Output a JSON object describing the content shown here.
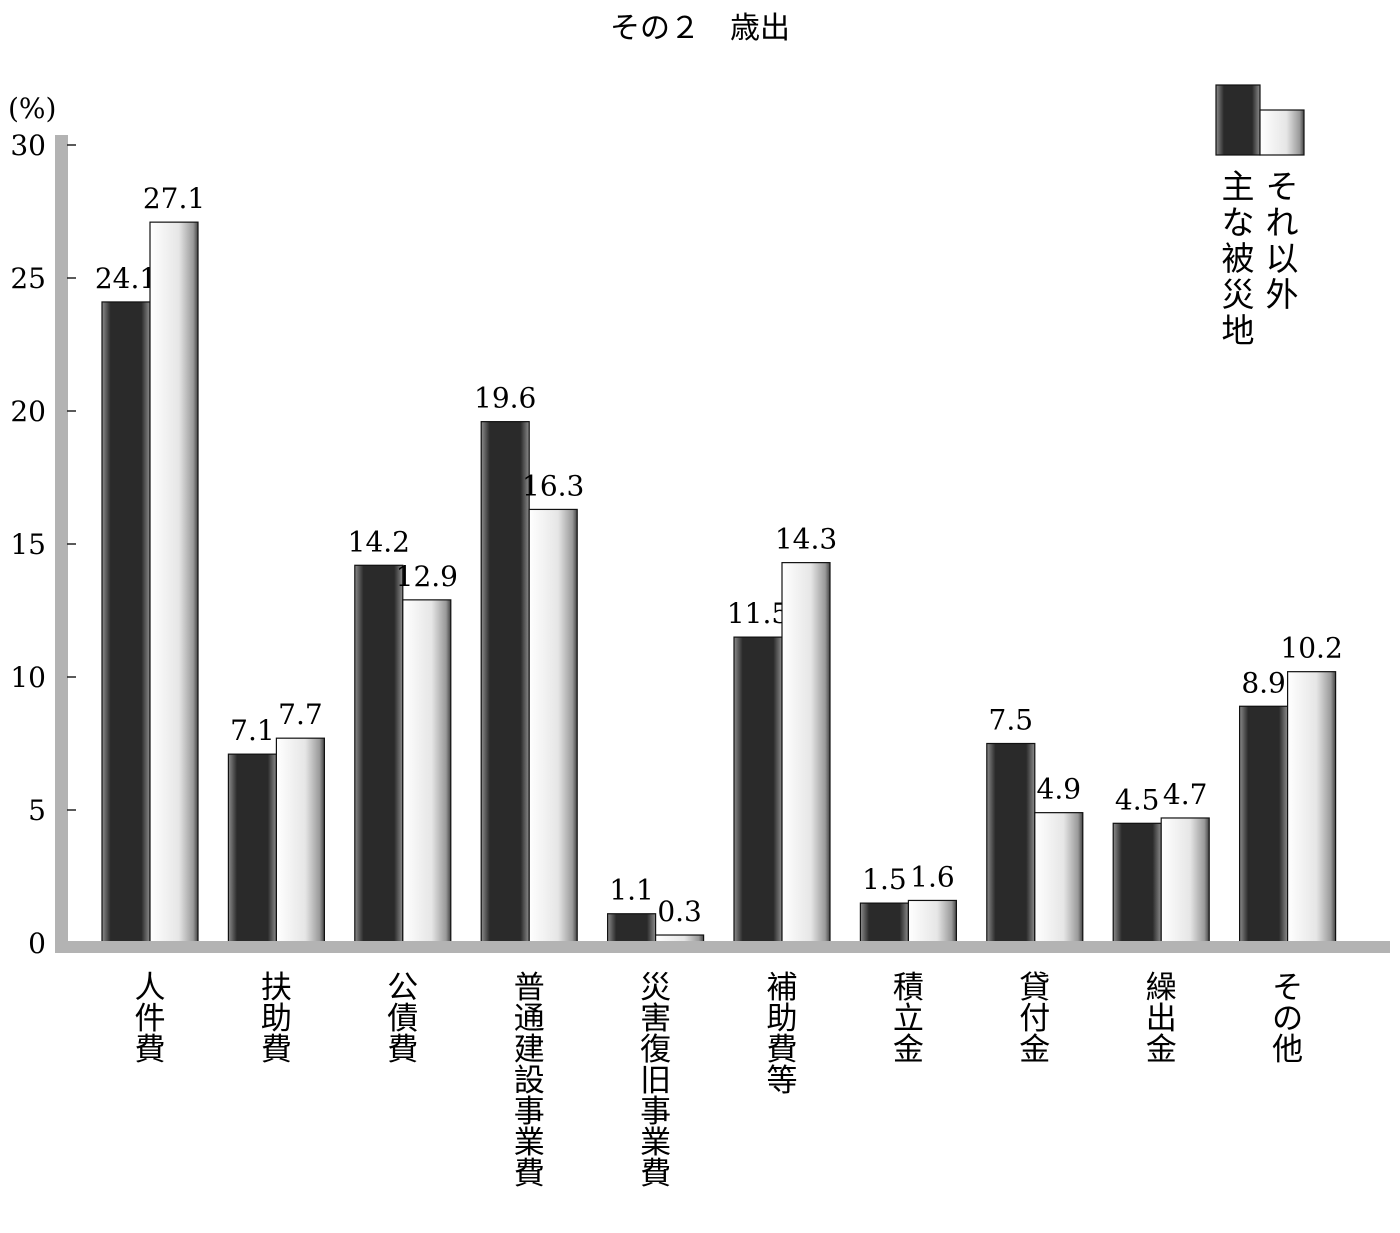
{
  "chart_data": {
    "type": "bar",
    "title": "その２　歳出",
    "ylabel": "(%)",
    "xlabel": "",
    "ylim": [
      0,
      30
    ],
    "yticks": [
      0,
      5,
      10,
      15,
      20,
      25,
      30
    ],
    "grid": false,
    "legend_position": "top-right",
    "categories": [
      "人件費",
      "扶助費",
      "公債費",
      "普通建設事業費",
      "災害復旧事業費",
      "補助費等",
      "積立金",
      "貸付金",
      "繰出金",
      "その他"
    ],
    "series": [
      {
        "name": "主な被災地",
        "color": "#2a2a2a",
        "values": [
          24.1,
          7.1,
          14.2,
          19.6,
          1.1,
          11.5,
          1.5,
          7.5,
          4.5,
          8.9
        ]
      },
      {
        "name": "それ以外",
        "color": "#e6e6e6",
        "values": [
          27.1,
          7.7,
          12.9,
          16.3,
          0.3,
          14.3,
          1.6,
          4.9,
          4.7,
          10.2
        ]
      }
    ],
    "axis_color": "#b3b3b3"
  }
}
